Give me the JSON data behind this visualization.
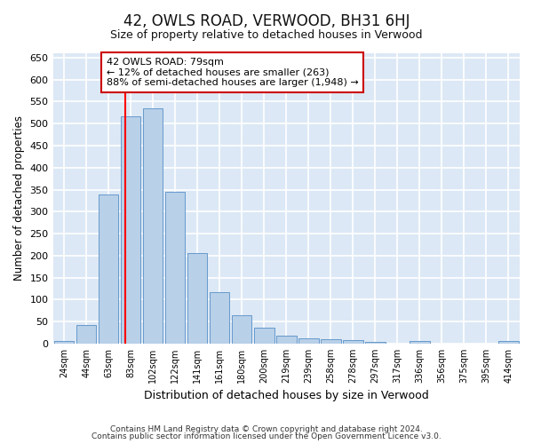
{
  "title": "42, OWLS ROAD, VERWOOD, BH31 6HJ",
  "subtitle": "Size of property relative to detached houses in Verwood",
  "xlabel": "Distribution of detached houses by size in Verwood",
  "ylabel": "Number of detached properties",
  "categories": [
    "24sqm",
    "44sqm",
    "63sqm",
    "83sqm",
    "102sqm",
    "122sqm",
    "141sqm",
    "161sqm",
    "180sqm",
    "200sqm",
    "219sqm",
    "239sqm",
    "258sqm",
    "278sqm",
    "297sqm",
    "317sqm",
    "336sqm",
    "356sqm",
    "375sqm",
    "395sqm",
    "414sqm"
  ],
  "values": [
    5,
    42,
    340,
    517,
    535,
    345,
    205,
    117,
    65,
    37,
    18,
    12,
    10,
    7,
    3,
    0,
    5,
    0,
    0,
    0,
    5
  ],
  "bar_color": "#b8d0e8",
  "bar_edge_color": "#6699cc",
  "background_color": "#dce8f5",
  "grid_color": "#ffffff",
  "red_line_x": 2.75,
  "annotation_text": "42 OWLS ROAD: 79sqm\n← 12% of detached houses are smaller (263)\n88% of semi-detached houses are larger (1,948) →",
  "annotation_box_color": "#ffffff",
  "annotation_box_edge": "#cc0000",
  "ylim": [
    0,
    660
  ],
  "yticks": [
    0,
    50,
    100,
    150,
    200,
    250,
    300,
    350,
    400,
    450,
    500,
    550,
    600,
    650
  ],
  "footer1": "Contains HM Land Registry data © Crown copyright and database right 2024.",
  "footer2": "Contains public sector information licensed under the Open Government Licence v3.0."
}
